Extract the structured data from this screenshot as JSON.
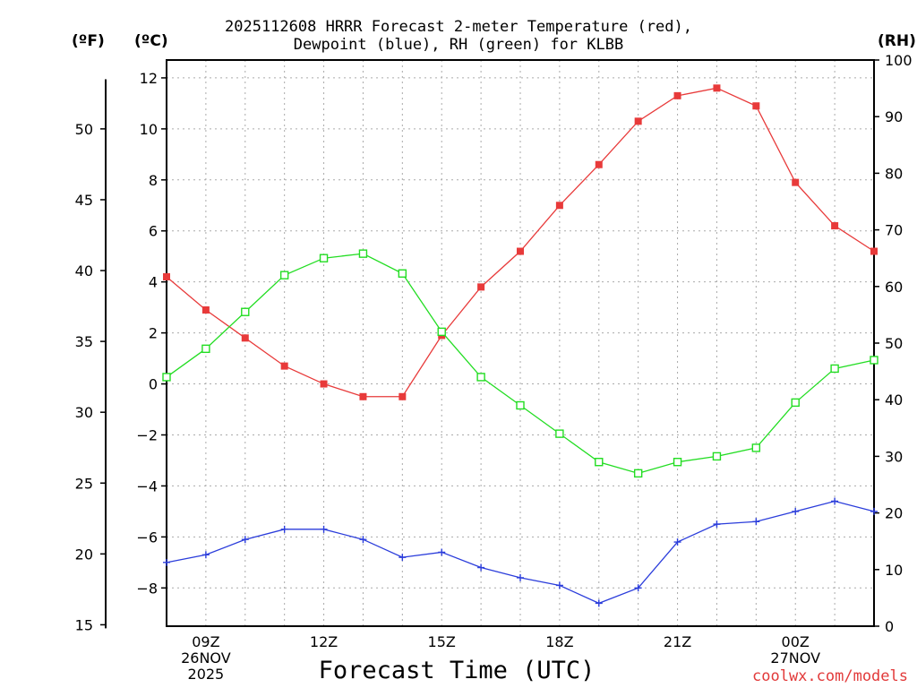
{
  "chart_data": {
    "type": "line",
    "title_line1": "2025112608 HRRR Forecast 2-meter Temperature (red),",
    "title_line2": "Dewpoint (blue), RH (green) for KLBB",
    "xlabel": "Forecast Time (UTC)",
    "credit": "coolwx.com/models",
    "units": {
      "fahrenheit": "(ºF)",
      "celsius": "(ºC)",
      "rh": "(RH)"
    },
    "x_hours": [
      8,
      9,
      10,
      11,
      12,
      13,
      14,
      15,
      16,
      17,
      18,
      19,
      20,
      21,
      22,
      23,
      24,
      25,
      26
    ],
    "xlim": [
      8,
      26
    ],
    "ylim_c": [
      -9.5,
      12.7
    ],
    "ylim_rh": [
      0,
      100
    ],
    "yticks_c": [
      "12",
      "10",
      "8",
      "6",
      "4",
      "2",
      "0",
      "−2",
      "−4",
      "−6",
      "−8"
    ],
    "yticks_f": [
      "50",
      "45",
      "40",
      "35",
      "30",
      "25",
      "20",
      "15"
    ],
    "yticks_rh": [
      "100",
      "90",
      "80",
      "70",
      "60",
      "50",
      "40",
      "30",
      "20",
      "10",
      "0"
    ],
    "xticks": [
      {
        "hour": 9,
        "lines": [
          "09Z",
          "26NOV",
          "2025"
        ]
      },
      {
        "hour": 12,
        "lines": [
          "12Z"
        ]
      },
      {
        "hour": 15,
        "lines": [
          "15Z"
        ]
      },
      {
        "hour": 18,
        "lines": [
          "18Z"
        ]
      },
      {
        "hour": 21,
        "lines": [
          "21Z"
        ]
      },
      {
        "hour": 24,
        "lines": [
          "00Z",
          "27NOV"
        ]
      }
    ],
    "series": [
      {
        "name": "Temperature",
        "axis": "celsius",
        "color": "#e83a3a",
        "marker": "filled-square",
        "values": [
          4.2,
          2.9,
          1.8,
          0.7,
          0.0,
          -0.5,
          -0.5,
          1.9,
          3.8,
          5.2,
          7.0,
          8.6,
          10.3,
          11.3,
          11.6,
          10.9,
          7.9,
          6.2,
          5.2
        ]
      },
      {
        "name": "Dewpoint",
        "axis": "celsius",
        "color": "#2b3ddb",
        "marker": "plus",
        "values": [
          -7.0,
          -6.7,
          -6.1,
          -5.7,
          -5.7,
          -6.1,
          -6.8,
          -6.6,
          -7.2,
          -7.6,
          -7.9,
          -8.6,
          -8.0,
          -6.2,
          -5.5,
          -5.4,
          -5.0,
          -4.6,
          -5.0
        ]
      },
      {
        "name": "RH",
        "axis": "rh",
        "color": "#22dd22",
        "marker": "open-square",
        "values": [
          44,
          49,
          55.5,
          62,
          65,
          65.8,
          62.3,
          52,
          44,
          39,
          34,
          29,
          27,
          29,
          30,
          31.5,
          39.5,
          45.5,
          47
        ]
      }
    ]
  }
}
